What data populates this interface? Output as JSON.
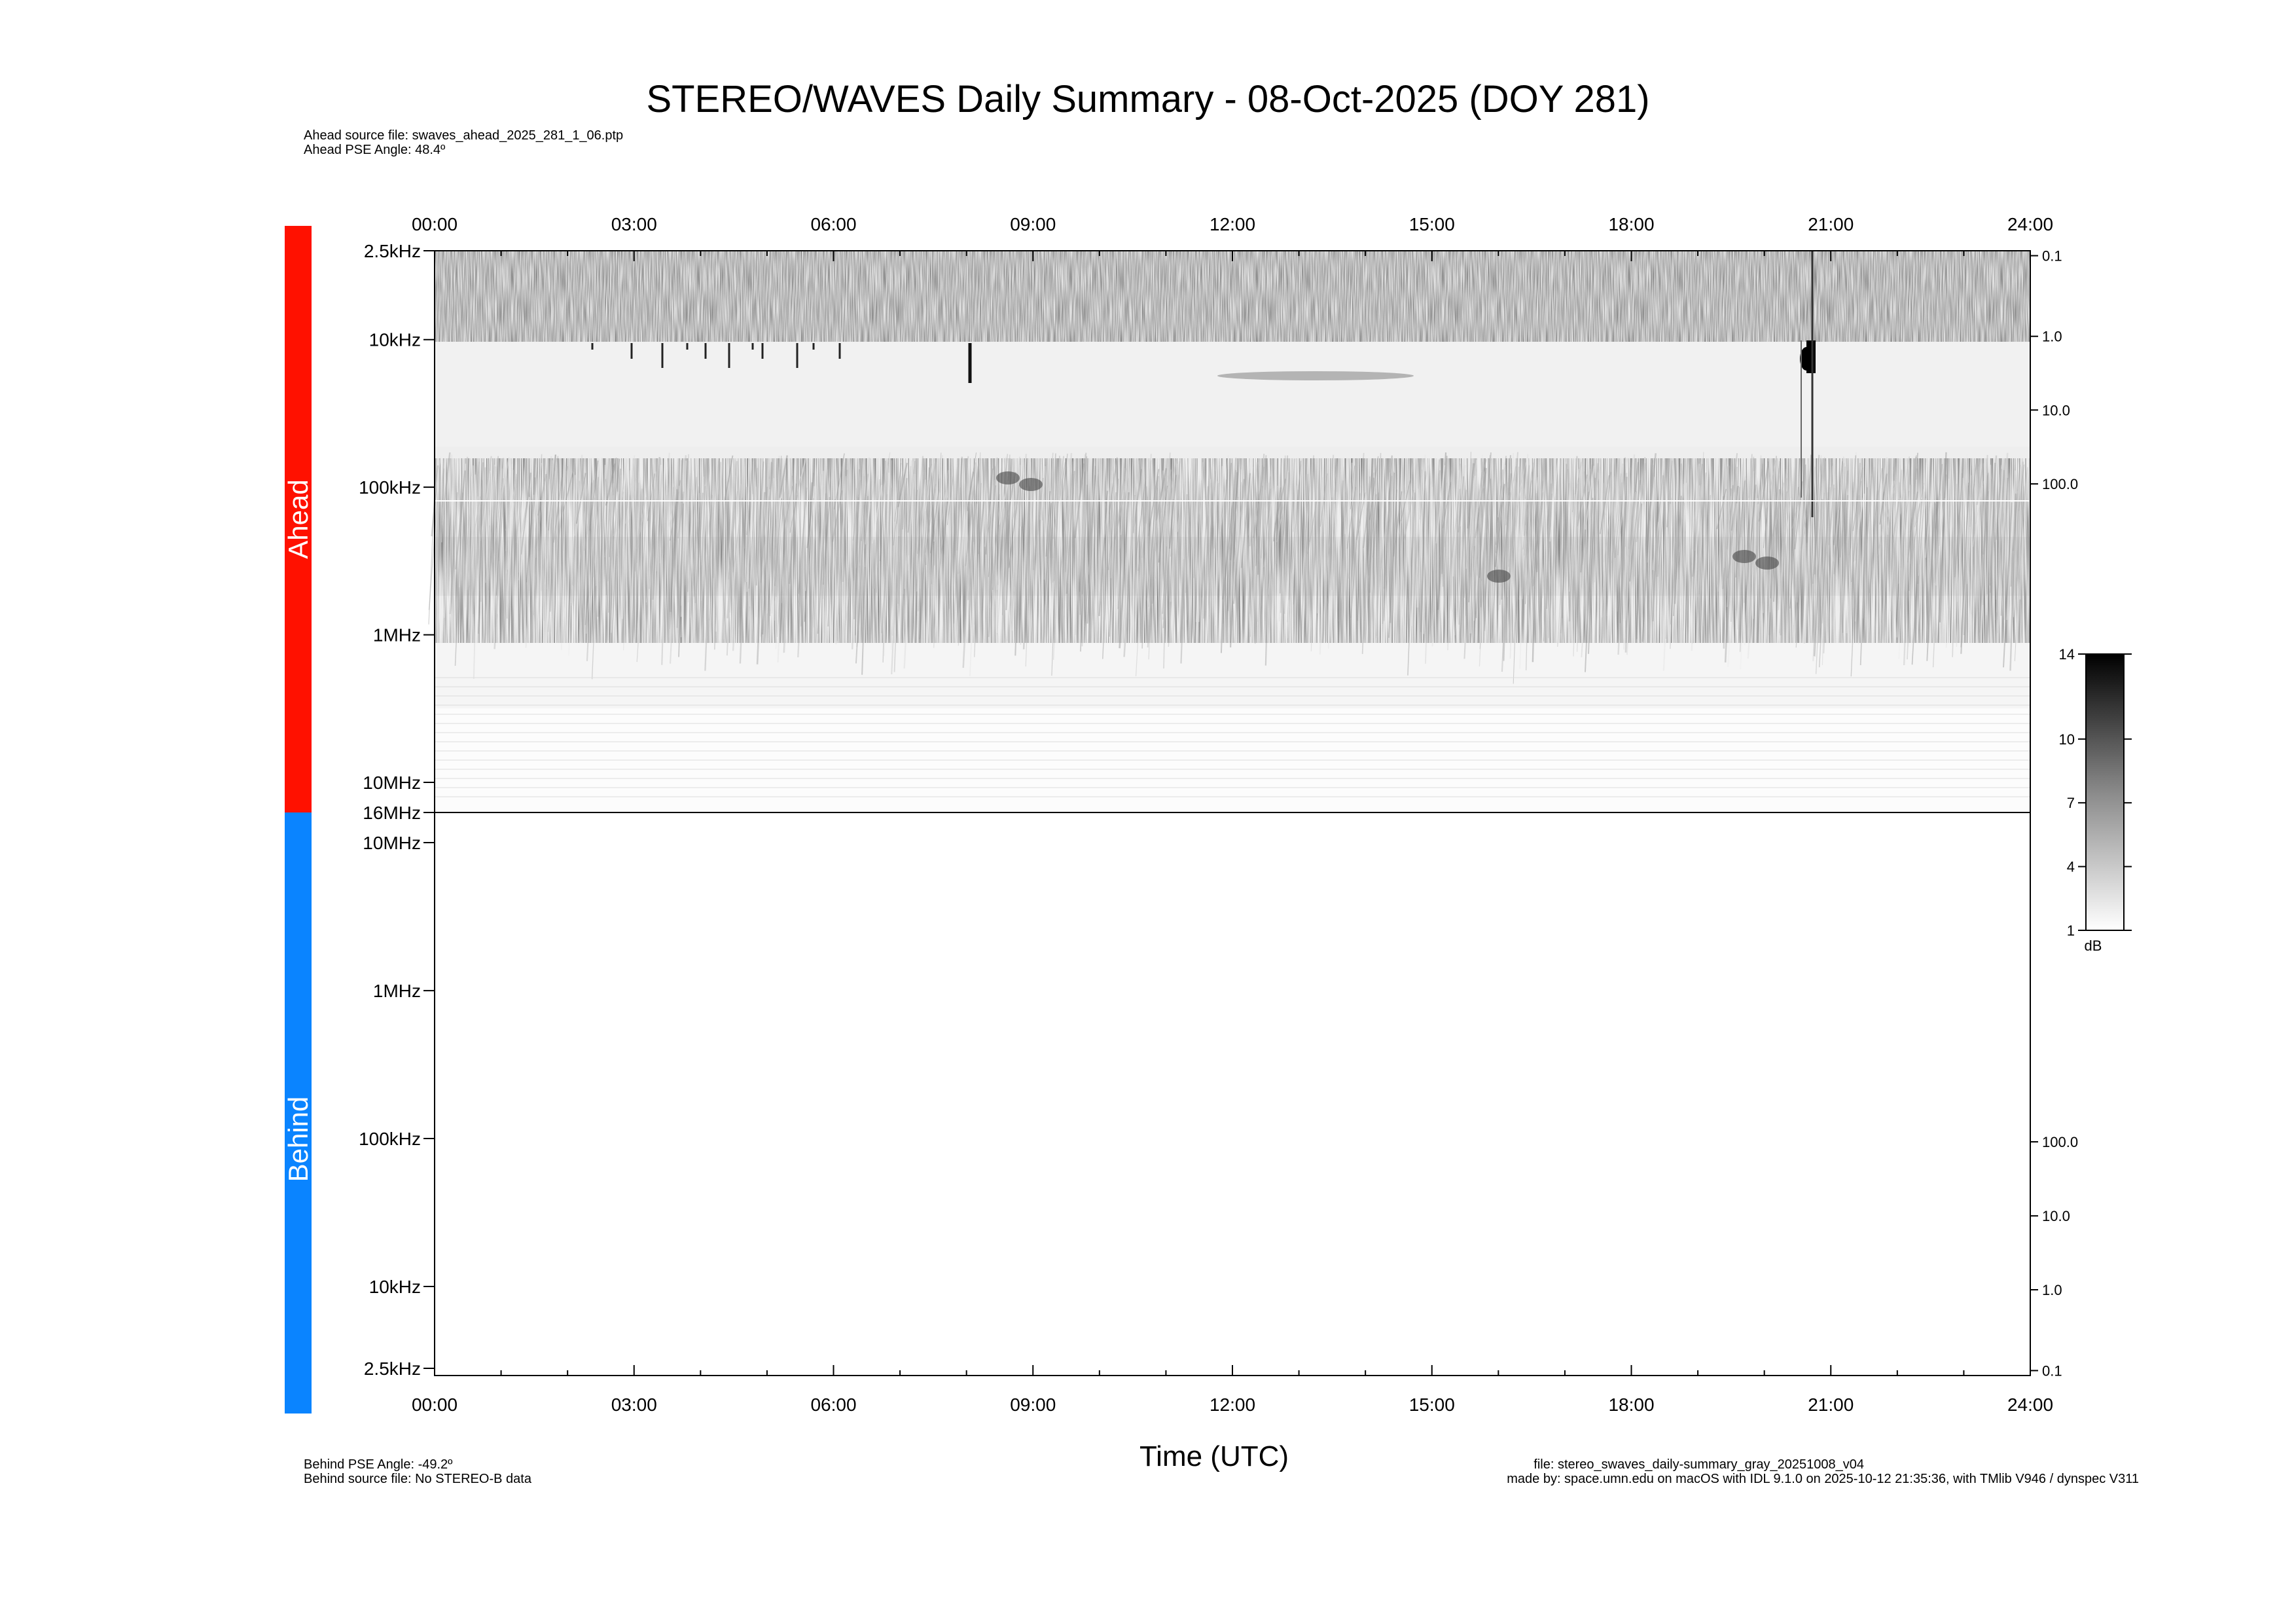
{
  "title": "STEREO/WAVES Daily Summary - 08-Oct-2025 (DOY 281)",
  "ahead_info": {
    "source_file": "Ahead source file: swaves_ahead_2025_281_1_06.ptp",
    "pse_angle": "Ahead PSE Angle:   48.4º"
  },
  "behind_info": {
    "pse_angle": "Behind PSE Angle:  -49.2º",
    "source_file": "Behind source file: No STEREO-B data"
  },
  "footer": {
    "file": "file: stereo_swaves_daily-summary_gray_20251008_v04",
    "made_by": "made by: space.umn.edu on macOS with IDL 9.1.0 on 2025-10-12 21:35:36, with TMlib V946 / dynspec V311"
  },
  "colors": {
    "ahead": "#ff1100",
    "behind": "#0a84ff"
  },
  "chart_data": {
    "type": "heatmap",
    "xlabel": "Time (UTC)",
    "x_ticks": [
      "00:00",
      "03:00",
      "06:00",
      "09:00",
      "12:00",
      "15:00",
      "18:00",
      "21:00",
      "24:00"
    ],
    "xlim": [
      0,
      24
    ],
    "panels": [
      {
        "name": "Ahead",
        "y_ticks": [
          {
            "label": "2.5kHz",
            "freq_khz": 2.5
          },
          {
            "label": "10kHz",
            "freq_khz": 10
          },
          {
            "label": "100kHz",
            "freq_khz": 100
          },
          {
            "label": "1MHz",
            "freq_khz": 1000
          },
          {
            "label": "10MHz",
            "freq_khz": 10000
          },
          {
            "label": "16MHz",
            "freq_khz": 16000
          }
        ],
        "right_ticks": [
          {
            "label": "0.1",
            "freq_khz": 2.7
          },
          {
            "label": "1.0",
            "freq_khz": 9.5
          },
          {
            "label": "10.0",
            "freq_khz": 30
          },
          {
            "label": "100.0",
            "freq_khz": 95
          }
        ],
        "scale": "log",
        "has_data": true
      },
      {
        "name": "Behind",
        "y_ticks": [
          {
            "label": "10MHz",
            "freq_khz": 10000
          },
          {
            "label": "1MHz",
            "freq_khz": 1000
          },
          {
            "label": "100kHz",
            "freq_khz": 100
          },
          {
            "label": "10kHz",
            "freq_khz": 10
          },
          {
            "label": "2.5kHz",
            "freq_khz": 2.5
          }
        ],
        "right_ticks": [
          {
            "label": "100.0",
            "freq_khz": 95
          },
          {
            "label": "10.0",
            "freq_khz": 30
          },
          {
            "label": "1.0",
            "freq_khz": 9.5
          },
          {
            "label": "0.1",
            "freq_khz": 2.7
          }
        ],
        "scale": "log",
        "has_data": false
      }
    ],
    "colorbar": {
      "ticks": [
        14,
        10,
        7,
        4,
        1
      ],
      "range": [
        1,
        14
      ],
      "unit": "dB"
    }
  }
}
